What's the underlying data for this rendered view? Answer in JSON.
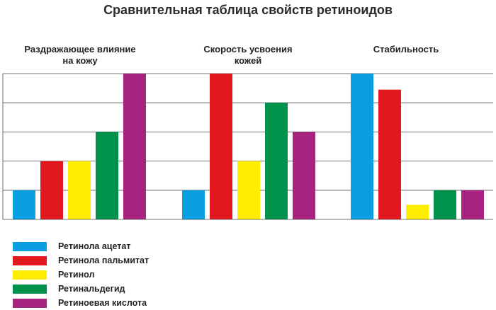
{
  "chart_data": {
    "type": "bar",
    "title": "Сравнительная таблица свойств ретиноидов",
    "groups": [
      {
        "label_lines": [
          "Раздражающее влияние",
          "на кожу"
        ]
      },
      {
        "label_lines": [
          "Скорость усвоения",
          "кожей"
        ]
      },
      {
        "label_lines": [
          "Стабильность"
        ]
      }
    ],
    "categories": [
      "Раздражающее влияние на кожу",
      "Скорость усвоения кожей",
      "Стабильность"
    ],
    "series": [
      {
        "name": "Ретинола ацетат",
        "color": "#0a9fe0",
        "values": [
          1,
          1,
          5
        ]
      },
      {
        "name": "Ретинола пальмитат",
        "color": "#e3181f",
        "values": [
          2,
          5,
          4.45
        ]
      },
      {
        "name": "Ретинол",
        "color": "#ffed00",
        "values": [
          2,
          2,
          0.5
        ]
      },
      {
        "name": "Ретинальдегид",
        "color": "#00924a",
        "values": [
          3,
          4,
          1
        ]
      },
      {
        "name": "Ретиноевая кислота",
        "color": "#a6247f",
        "values": [
          5,
          3,
          1
        ]
      }
    ],
    "ylim": [
      0,
      5
    ],
    "grid": true,
    "xlabel": "",
    "ylabel": ""
  }
}
